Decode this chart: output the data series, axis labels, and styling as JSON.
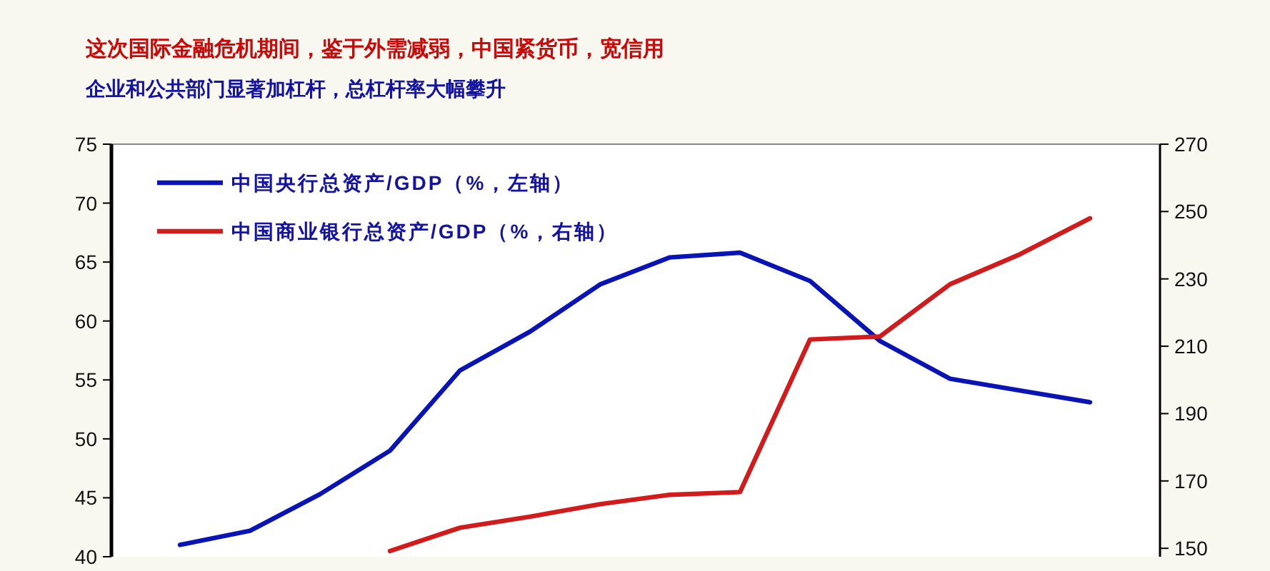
{
  "chart_data": {
    "type": "line",
    "title": "这次国际金融危机期间，鉴于外需减弱，中国紧货币，宽信用",
    "subtitle": "企业和公共部门显著加杠杆，总杠杆率大幅攀升",
    "categories": [
      null,
      null,
      null,
      null,
      null,
      null,
      null,
      null,
      null,
      null,
      null,
      null,
      null,
      null
    ],
    "series": [
      {
        "name": "中国央行总资产/GDP（%，左轴）",
        "color": "#0a14b4",
        "values": [
          41.0,
          42.2,
          45.3,
          49.0,
          55.8,
          59.1,
          63.1,
          65.4,
          65.8,
          63.4,
          58.3,
          55.1,
          54.1,
          53.1
        ]
      },
      {
        "name": "中国商业银行总资产/GDP（%，右轴）",
        "color": "#d01c1c",
        "axis": "y2",
        "values": [
          null,
          null,
          null,
          149.2,
          156.1,
          159.4,
          163.1,
          165.9,
          166.7,
          212.0,
          212.9,
          228.4,
          237.3,
          248.0
        ]
      }
    ],
    "ylim": [
      40,
      75
    ],
    "yticks": [
      40,
      45,
      50,
      55,
      60,
      65,
      70,
      75
    ],
    "y2lim": [
      147.5,
      270
    ],
    "y2ticks": [
      150,
      170,
      190,
      210,
      230,
      250,
      270
    ],
    "legend": "top left",
    "grid": false,
    "marker": "none",
    "line_style": "solid"
  }
}
